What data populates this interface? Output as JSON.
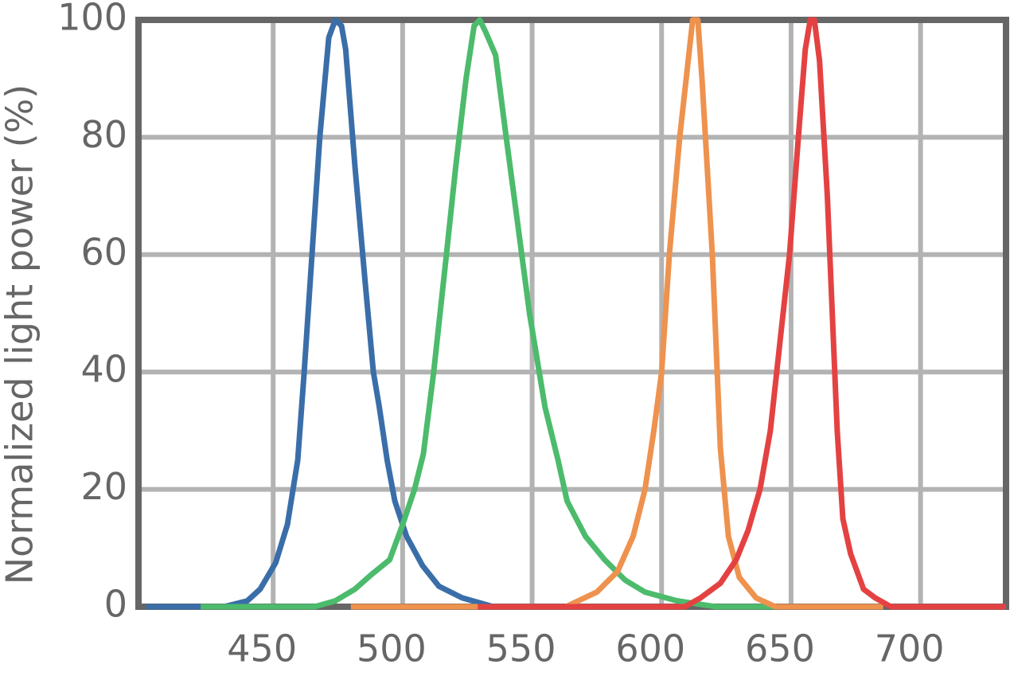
{
  "chart_data": {
    "type": "line",
    "y_label": "Normalized light power (%)",
    "xlim": [
      398,
      733
    ],
    "ylim": [
      0,
      100
    ],
    "xticks": [
      450,
      500,
      550,
      600,
      650,
      700
    ],
    "yticks": [
      0,
      20,
      40,
      60,
      80,
      100
    ],
    "grid": true,
    "series": [
      {
        "color": "#3a6ea8",
        "x": [
          401,
          431,
          440,
          445,
          451,
          455.5,
          459.5,
          462,
          465,
          468,
          471.5,
          474,
          476.4,
          478,
          481.6,
          485.6,
          488.7,
          491,
          494,
          497,
          501.5,
          507.7,
          514,
          523,
          535
        ],
        "values": [
          0,
          0,
          1,
          3,
          7.5,
          14,
          25,
          40,
          60,
          80,
          97,
          100,
          99,
          95,
          75,
          55,
          40,
          34,
          25,
          18,
          12,
          7,
          3.5,
          1.5,
          0
        ]
      },
      {
        "color": "#4cbb6c",
        "x": [
          422,
          466,
          474,
          481.6,
          488,
          495,
          500,
          504.6,
          508,
          512,
          516.9,
          520.5,
          524.5,
          527.6,
          529.8,
          532,
          535.9,
          540,
          544.5,
          549,
          555,
          560,
          563.5,
          570.6,
          578,
          586,
          593.6,
          606,
          621,
          644
        ],
        "values": [
          0,
          0,
          1,
          3,
          5.5,
          8,
          14,
          20,
          26,
          40,
          60,
          75,
          90,
          99,
          100,
          98,
          94,
          80,
          65,
          50,
          34,
          25,
          18,
          12,
          8,
          4.5,
          2.5,
          1,
          0,
          0
        ]
      },
      {
        "color": "#ee924e",
        "x": [
          480,
          563,
          575,
          583,
          589,
          593.6,
          597,
          600,
          603,
          607,
          610,
          612,
          614,
          615.6,
          619.6,
          622.7,
          625.8,
          630,
          636.5,
          644,
          685.6
        ],
        "values": [
          0,
          0,
          2.5,
          6,
          12,
          20,
          30,
          40,
          60,
          80,
          92,
          100,
          100,
          90,
          60,
          27,
          12,
          5,
          1.5,
          0,
          0
        ]
      },
      {
        "color": "#e44242",
        "x": [
          529,
          609,
          615,
          622.7,
          628.8,
          633.4,
          638,
          642,
          645.7,
          649.4,
          652.8,
          655.5,
          657.4,
          659,
          661,
          664,
          667.8,
          670,
          673,
          678,
          682.5,
          688.6,
          733
        ],
        "values": [
          0,
          0,
          1.5,
          4,
          8,
          13,
          20,
          30,
          45,
          60,
          80,
          95,
          100,
          100,
          93,
          70,
          30,
          15,
          9,
          3,
          1.5,
          0,
          0
        ]
      }
    ]
  }
}
